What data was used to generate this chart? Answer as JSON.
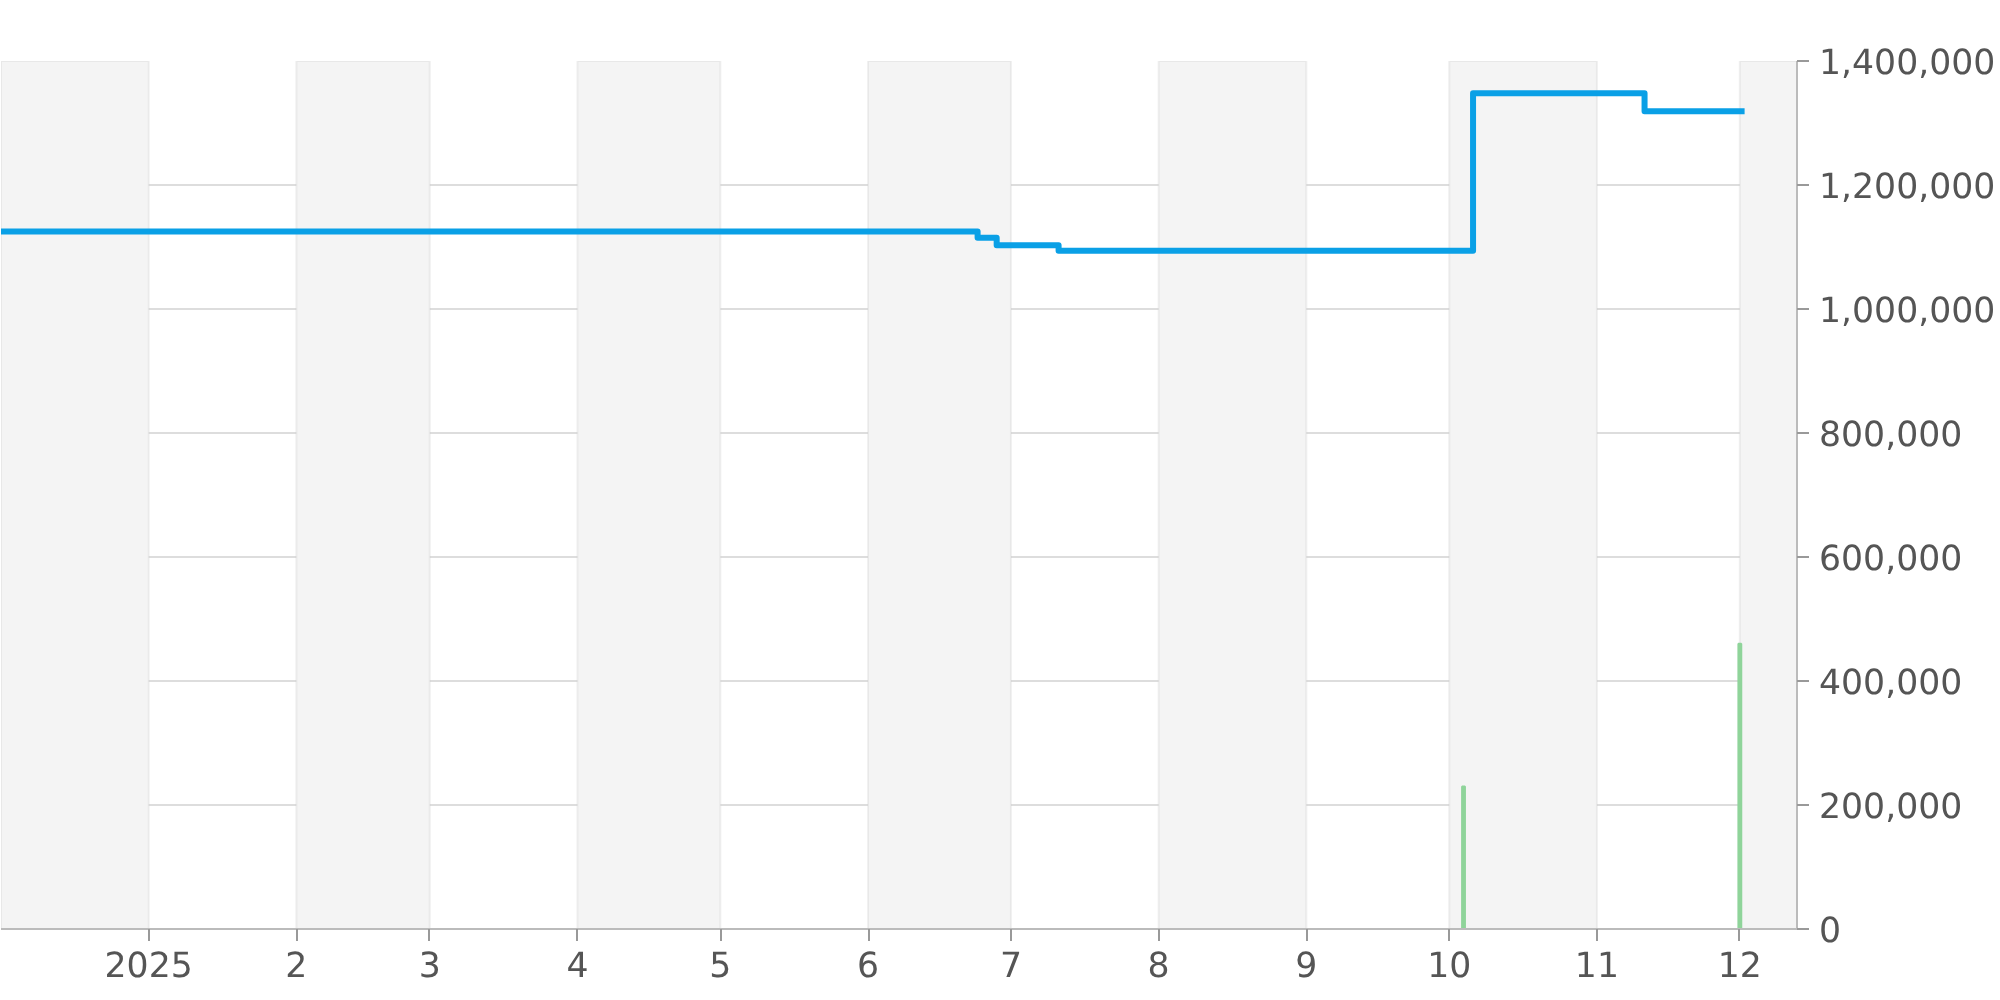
{
  "chart_data": {
    "type": "step",
    "xlim": [
      "2024-12-01",
      "2025-12-13"
    ],
    "ylim": [
      0,
      1400000
    ],
    "xticks": [
      {
        "value": "2025-01-01",
        "label": "2025"
      },
      {
        "value": "2025-02-01",
        "label": "2"
      },
      {
        "value": "2025-03-01",
        "label": "3"
      },
      {
        "value": "2025-04-01",
        "label": "4"
      },
      {
        "value": "2025-05-01",
        "label": "5"
      },
      {
        "value": "2025-06-01",
        "label": "6"
      },
      {
        "value": "2025-07-01",
        "label": "7"
      },
      {
        "value": "2025-08-01",
        "label": "8"
      },
      {
        "value": "2025-09-01",
        "label": "9"
      },
      {
        "value": "2025-10-01",
        "label": "10"
      },
      {
        "value": "2025-11-01",
        "label": "11"
      },
      {
        "value": "2025-12-01",
        "label": "12"
      }
    ],
    "yticks": [
      {
        "value": 0,
        "label": "0"
      },
      {
        "value": 200000,
        "label": "200,000"
      },
      {
        "value": 400000,
        "label": "400,000"
      },
      {
        "value": 600000,
        "label": "600,000"
      },
      {
        "value": 800000,
        "label": "800,000"
      },
      {
        "value": 1000000,
        "label": "1,000,000"
      },
      {
        "value": 1200000,
        "label": "1,200,000"
      },
      {
        "value": 1400000,
        "label": "1,400,000"
      }
    ],
    "grid": "y",
    "series": [
      {
        "color": "#0aa0e6",
        "x": [
          "2024-12-01",
          "2025-06-24",
          "2025-06-28",
          "2025-07-11",
          "2025-10-06",
          "2025-11-11",
          "2025-12-02"
        ],
        "values": [
          1125000,
          1115000,
          1103000,
          1094000,
          1348000,
          1319000,
          1319000
        ]
      },
      {
        "type": "bar",
        "color": "#8fd49a",
        "x": [
          "2025-10-04",
          "2025-12-01"
        ],
        "values": [
          230000,
          460000
        ]
      }
    ],
    "bands": [
      {
        "axis": "x",
        "from": "2024-12-01",
        "to": "2025-01-01",
        "color": "#f4f4f4"
      },
      {
        "axis": "x",
        "from": "2025-02-01",
        "to": "2025-03-01",
        "color": "#f4f4f4"
      },
      {
        "axis": "x",
        "from": "2025-04-01",
        "to": "2025-05-01",
        "color": "#f4f4f4"
      },
      {
        "axis": "x",
        "from": "2025-06-01",
        "to": "2025-07-01",
        "color": "#f4f4f4"
      },
      {
        "axis": "x",
        "from": "2025-08-01",
        "to": "2025-09-01",
        "color": "#f4f4f4"
      },
      {
        "axis": "x",
        "from": "2025-10-01",
        "to": "2025-11-01",
        "color": "#f4f4f4"
      },
      {
        "axis": "x",
        "from": "2025-12-01",
        "to": "2025-12-13",
        "color": "#f4f4f4"
      }
    ]
  }
}
